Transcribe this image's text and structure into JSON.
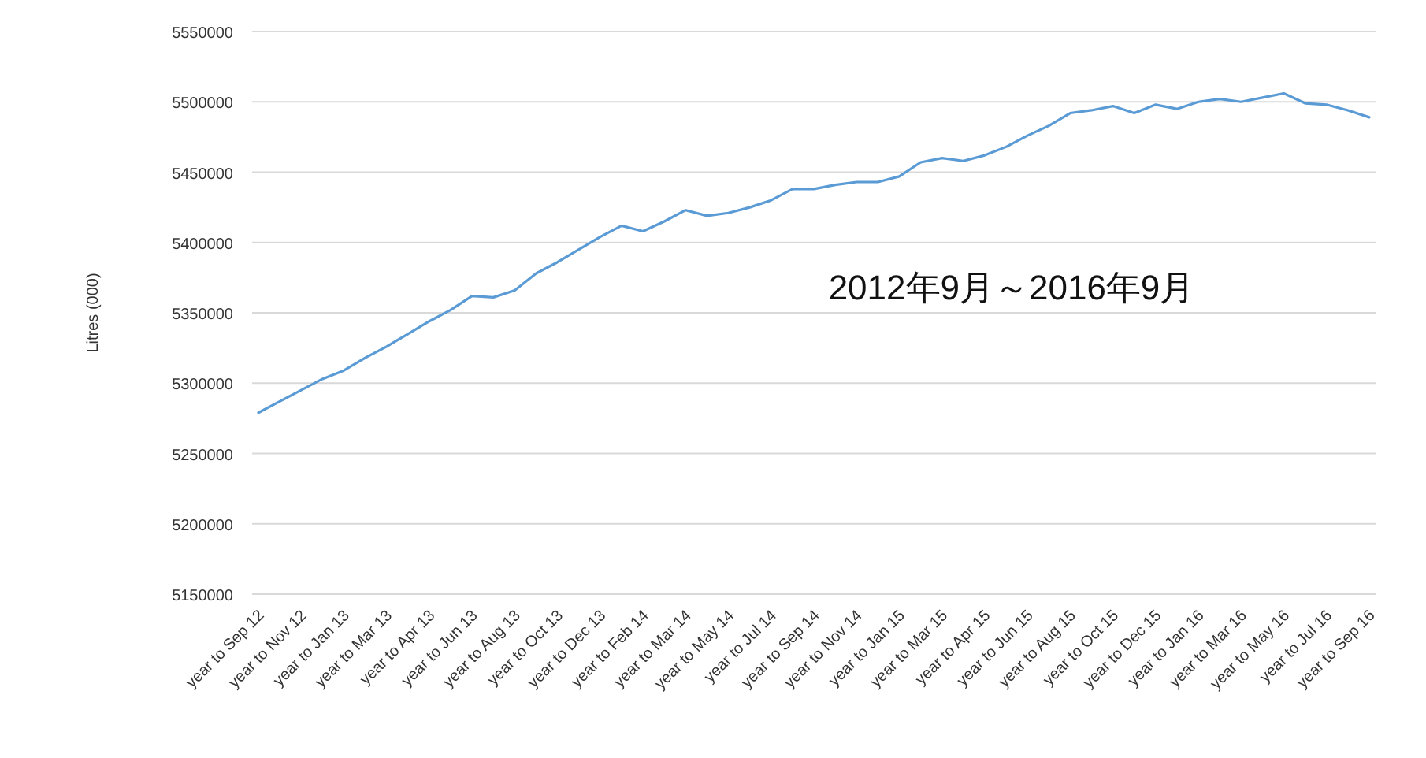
{
  "chart_data": {
    "type": "line",
    "ylabel": "Litres (000)",
    "categories": [
      "year to Sep 12",
      null,
      "year to Nov 12",
      null,
      "year to Jan 13",
      null,
      "year to Mar 13",
      null,
      "year to Apr 13",
      null,
      "year to Jun 13",
      null,
      "year to Aug 13",
      null,
      "year to Oct 13",
      null,
      "year to Dec 13",
      null,
      "year to Feb 14",
      null,
      "year to Mar 14",
      null,
      "year to May 14",
      null,
      "year to Jul 14",
      null,
      "year to Sep 14",
      null,
      "year to Nov 14",
      null,
      "year to Jan 15",
      null,
      "year to Mar 15",
      null,
      "year to Apr 15",
      null,
      "year to Jun 15",
      null,
      "year to Aug 15",
      null,
      "year to Oct 15",
      null,
      "year to Dec 15",
      null,
      "year to Jan 16",
      null,
      "year to Mar 16",
      null,
      "year to May 16",
      null,
      "year to Jul 16",
      null,
      "year to Sep 16"
    ],
    "series": [
      {
        "color": "#5b9bd5",
        "values": [
          5279000,
          5287000,
          5295000,
          5303000,
          5309000,
          5318000,
          5326000,
          5335000,
          5344000,
          5352000,
          5362000,
          5361000,
          5366000,
          5378000,
          5386000,
          5395000,
          5404000,
          5412000,
          5408000,
          5415000,
          5423000,
          5419000,
          5421000,
          5425000,
          5430000,
          5438000,
          5438000,
          5441000,
          5443000,
          5443000,
          5447000,
          5457000,
          5460000,
          5458000,
          5462000,
          5468000,
          5476000,
          5483000,
          5492000,
          5494000,
          5497000,
          5492000,
          5498000,
          5495000,
          5500000,
          5502000,
          5500000,
          5503000,
          5506000,
          5499000,
          5498000,
          5494000,
          5489000
        ]
      }
    ],
    "ylim": [
      5150000,
      5550000
    ],
    "yticks": [
      5150000,
      5200000,
      5250000,
      5300000,
      5350000,
      5400000,
      5450000,
      5500000,
      5550000
    ],
    "grid": "y",
    "line_style": "solid",
    "annotations": [
      "2012年9月～2016年9月"
    ]
  }
}
